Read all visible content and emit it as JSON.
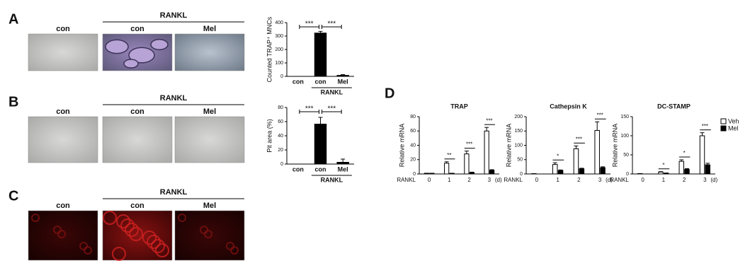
{
  "panels": [
    {
      "label": "A",
      "group": "RANKL",
      "images": [
        "con",
        "con",
        "Mel"
      ]
    },
    {
      "label": "B",
      "group": "RANKL",
      "images": [
        "con",
        "con",
        "Mel"
      ]
    },
    {
      "label": "C",
      "group": "RANKL",
      "images": [
        "con",
        "con",
        "Mel"
      ]
    }
  ],
  "panel_d_label": "D",
  "chart_data": [
    {
      "type": "bar",
      "ylabel": "Counted TRAP⁺ MNCs",
      "categories": [
        "con",
        "con",
        "Mel"
      ],
      "group": "RANKL",
      "values": [
        0,
        325,
        10
      ],
      "errors": [
        0,
        10,
        3
      ],
      "color": "#000000",
      "ylim": [
        0,
        400
      ],
      "yticks": [
        0,
        100,
        200,
        300,
        400
      ],
      "significance": [
        "***",
        "***"
      ]
    },
    {
      "type": "bar",
      "ylabel": "Pit area (%)",
      "categories": [
        "con",
        "con",
        "Mel"
      ],
      "group": "RANKL",
      "values": [
        0,
        57,
        3
      ],
      "errors": [
        0,
        9,
        4
      ],
      "color": "#000000",
      "ylim": [
        0,
        80
      ],
      "yticks": [
        0,
        20,
        40,
        60,
        80
      ],
      "significance": [
        "***",
        "***"
      ]
    },
    {
      "type": "grouped",
      "title": "TRAP",
      "ylabel": "Relative mRNA",
      "xlabel": "RANKL",
      "unit": "(d)",
      "categories": [
        "0",
        "1",
        "2",
        "3"
      ],
      "series": [
        {
          "color": "#ffffff",
          "values": [
            1,
            15,
            28,
            60
          ],
          "errors": [
            0,
            2,
            4,
            5
          ]
        },
        {
          "color": "#000000",
          "values": [
            1,
            1,
            2,
            5
          ],
          "errors": [
            0,
            0,
            0.5,
            1
          ]
        }
      ],
      "ylim": [
        0,
        80
      ],
      "yticks": [
        0,
        20,
        40,
        60,
        80
      ],
      "significance": [
        null,
        "**",
        "***",
        "***"
      ]
    },
    {
      "type": "grouped",
      "title": "Cathepsin K",
      "ylabel": "Relative mRNA",
      "xlabel": "RANKL",
      "unit": "(d)",
      "categories": [
        "0",
        "1",
        "2",
        "3"
      ],
      "series": [
        {
          "color": "#ffffff",
          "values": [
            1,
            33,
            88,
            152
          ],
          "errors": [
            0,
            6,
            10,
            30
          ]
        },
        {
          "color": "#000000",
          "values": [
            0,
            12,
            18,
            22
          ],
          "errors": [
            0,
            2,
            2,
            3
          ]
        }
      ],
      "ylim": [
        0,
        200
      ],
      "yticks": [
        0,
        50,
        100,
        150,
        200
      ],
      "significance": [
        null,
        "*",
        "***",
        "***"
      ]
    },
    {
      "type": "grouped",
      "title": "DC-STAMP",
      "ylabel": "Relative mRNA",
      "xlabel": "RANKL",
      "unit": "(d)",
      "categories": [
        "0",
        "1",
        "2",
        "3"
      ],
      "series": [
        {
          "name": "Veh",
          "color": "#ffffff",
          "values": [
            1,
            5,
            33,
            100
          ],
          "errors": [
            0,
            1,
            4,
            8
          ]
        },
        {
          "name": "Mel",
          "color": "#000000",
          "values": [
            0,
            2,
            12,
            24
          ],
          "errors": [
            0,
            0.5,
            2,
            4
          ]
        }
      ],
      "ylim": [
        0,
        150
      ],
      "yticks": [
        0,
        50,
        100,
        150
      ],
      "significance": [
        null,
        "*",
        "*",
        "***"
      ],
      "legend": "right"
    }
  ]
}
